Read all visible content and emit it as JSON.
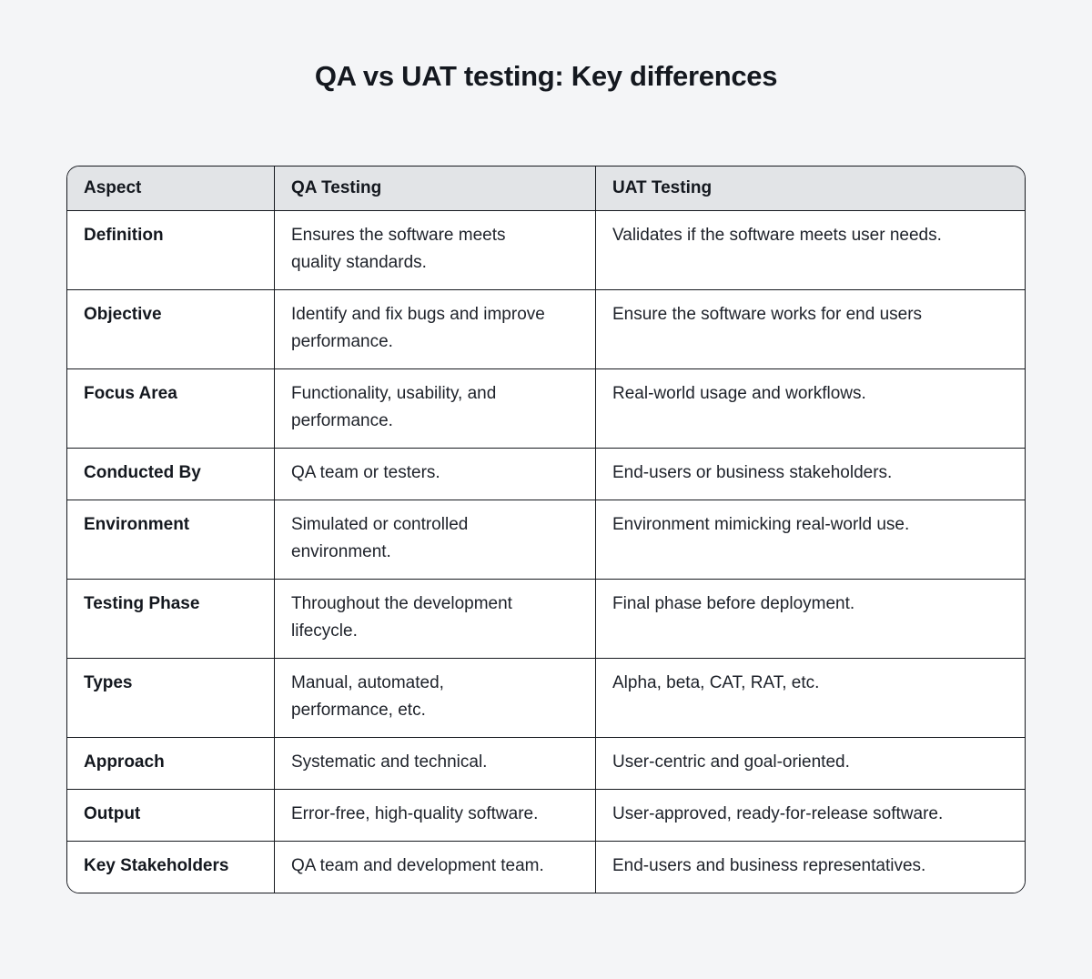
{
  "page": {
    "title": "QA vs UAT testing: Key differences",
    "background_color": "#f4f5f7"
  },
  "table": {
    "header_bg_color": "#e2e4e7",
    "border_color": "#16191f",
    "cell_bg_color": "#ffffff",
    "headers": {
      "aspect": "Aspect",
      "qa": "QA Testing",
      "uat": "UAT Testing"
    },
    "rows": [
      {
        "aspect": "Definition",
        "qa": "Ensures the software meets quality standards.",
        "uat": "Validates if the software meets user needs."
      },
      {
        "aspect": "Objective",
        "qa": "Identify and fix bugs and improve performance.",
        "uat": "Ensure the software works for end users"
      },
      {
        "aspect": "Focus Area",
        "qa": "Functionality, usability, and performance.",
        "uat": "Real-world usage and workflows."
      },
      {
        "aspect": "Conducted By",
        "qa": "QA team or testers.",
        "uat": "End-users or business stakeholders."
      },
      {
        "aspect": "Environment",
        "qa": "Simulated or controlled environment.",
        "uat": "Environment mimicking real-world use."
      },
      {
        "aspect": "Testing Phase",
        "qa": "Throughout the development lifecycle.",
        "uat": "Final phase before deployment."
      },
      {
        "aspect": "Types",
        "qa": "Manual, automated, performance, etc.",
        "uat": "Alpha, beta, CAT, RAT, etc."
      },
      {
        "aspect": "Approach",
        "qa": "Systematic and technical.",
        "uat": "User-centric and goal-oriented."
      },
      {
        "aspect": "Output",
        "qa": "Error-free, high-quality software.",
        "uat": "User-approved, ready-for-release software."
      },
      {
        "aspect": "Key Stakeholders",
        "qa": "QA team and development team.",
        "uat": "End-users and business representatives."
      }
    ]
  }
}
